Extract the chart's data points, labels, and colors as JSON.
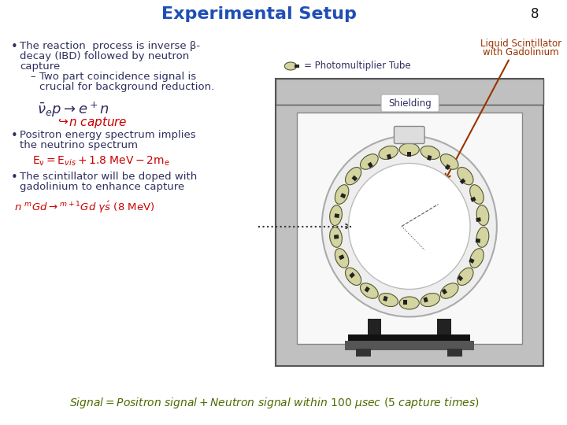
{
  "title": "Experimental Setup",
  "slide_number": "8",
  "title_color": "#1F4EB5",
  "title_fontsize": 16,
  "bg_color": "#FFFFFF",
  "bullet1_line1": "The reaction  process is inverse β-",
  "bullet1_line2": "decay (IBD) followed by neutron",
  "bullet1_line3": "capture",
  "sub_bullet": "Two part coincidence signal is",
  "sub_bullet2": "crucial for background reduction.",
  "bullet2_line1": "Positron energy spectrum implies",
  "bullet2_line2": "the neutrino spectrum",
  "bullet3_line1": "The scintillator will be doped with",
  "bullet3_line2": "gadolinium to enhance capture",
  "label_pmt": "= Photomultiplier Tube",
  "label_ls": "Liquid Scintillator",
  "label_ls2": "with Gadolinium",
  "label_shielding": "Shielding",
  "signal_text": "Signal = Positron signal + Neutron signal within 100 μsec (5 capture times)",
  "text_color": "#2F2F5F",
  "dark_color": "#111111",
  "red_color": "#CC0000",
  "green_color": "#4B6B00",
  "orange_color": "#993300",
  "shield_gray": "#C0C0C0",
  "shield_dark": "#888888",
  "inner_white": "#F0F0F0",
  "pmt_color": "#D4D4A0",
  "pmt_stem": "#222222"
}
